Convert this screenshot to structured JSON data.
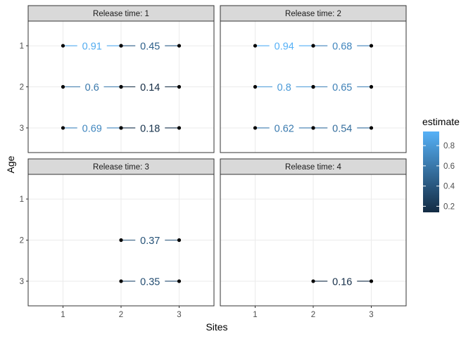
{
  "chart_data": {
    "type": "faceted-dot-segment",
    "xlabel": "Sites",
    "ylabel": "Age",
    "x_ticks": [
      "1",
      "2",
      "3"
    ],
    "y_ticks": [
      "1",
      "2",
      "3"
    ],
    "xlim": [
      0.4,
      3.6
    ],
    "ylim": [
      0.4,
      3.6
    ],
    "grid": true,
    "legend": {
      "title": "estimate",
      "position": "right",
      "min": 0.14,
      "max": 0.94,
      "ticks": [
        "0.2",
        "0.4",
        "0.6",
        "0.8"
      ],
      "tick_values": [
        0.2,
        0.4,
        0.6,
        0.8
      ],
      "color_low": "#132B43",
      "color_high": "#56B1F7"
    },
    "facets": [
      {
        "label": "Release time: 1",
        "segments": [
          {
            "age": 1,
            "from_site": 1,
            "to_site": 2,
            "estimate": 0.91,
            "label": "0.91"
          },
          {
            "age": 1,
            "from_site": 2,
            "to_site": 3,
            "estimate": 0.45,
            "label": "0.45"
          },
          {
            "age": 2,
            "from_site": 1,
            "to_site": 2,
            "estimate": 0.6,
            "label": "0.6"
          },
          {
            "age": 2,
            "from_site": 2,
            "to_site": 3,
            "estimate": 0.14,
            "label": "0.14"
          },
          {
            "age": 3,
            "from_site": 1,
            "to_site": 2,
            "estimate": 0.69,
            "label": "0.69"
          },
          {
            "age": 3,
            "from_site": 2,
            "to_site": 3,
            "estimate": 0.18,
            "label": "0.18"
          }
        ]
      },
      {
        "label": "Release time: 2",
        "segments": [
          {
            "age": 1,
            "from_site": 1,
            "to_site": 2,
            "estimate": 0.94,
            "label": "0.94"
          },
          {
            "age": 1,
            "from_site": 2,
            "to_site": 3,
            "estimate": 0.68,
            "label": "0.68"
          },
          {
            "age": 2,
            "from_site": 1,
            "to_site": 2,
            "estimate": 0.8,
            "label": "0.8"
          },
          {
            "age": 2,
            "from_site": 2,
            "to_site": 3,
            "estimate": 0.65,
            "label": "0.65"
          },
          {
            "age": 3,
            "from_site": 1,
            "to_site": 2,
            "estimate": 0.62,
            "label": "0.62"
          },
          {
            "age": 3,
            "from_site": 2,
            "to_site": 3,
            "estimate": 0.54,
            "label": "0.54"
          }
        ]
      },
      {
        "label": "Release time: 3",
        "segments": [
          {
            "age": 2,
            "from_site": 2,
            "to_site": 3,
            "estimate": 0.37,
            "label": "0.37"
          },
          {
            "age": 3,
            "from_site": 2,
            "to_site": 3,
            "estimate": 0.35,
            "label": "0.35"
          }
        ]
      },
      {
        "label": "Release time: 4",
        "segments": [
          {
            "age": 3,
            "from_site": 2,
            "to_site": 3,
            "estimate": 0.16,
            "label": "0.16"
          }
        ]
      }
    ]
  }
}
